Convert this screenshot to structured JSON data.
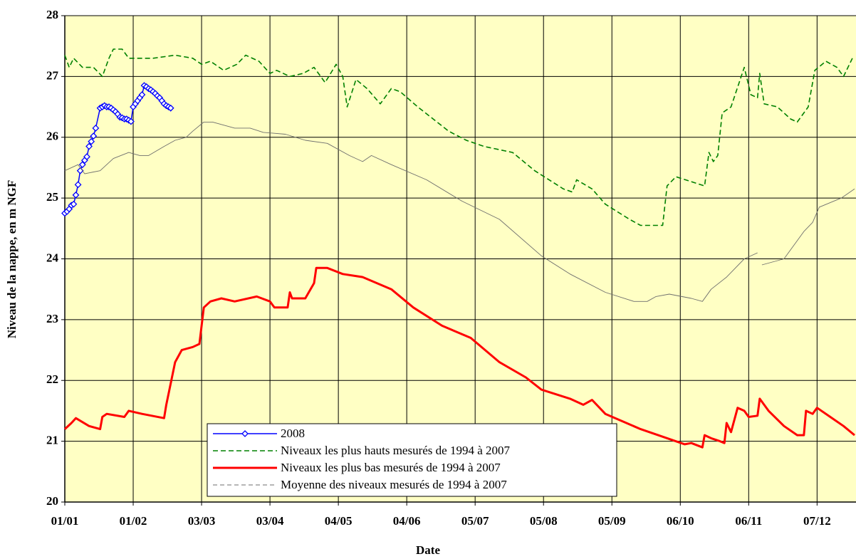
{
  "chart_data": {
    "type": "line",
    "ylabel": "Niveau de la nappe, en m NGF",
    "xlabel": "Date",
    "xlim": [
      0,
      358
    ],
    "ylim": [
      20,
      28
    ],
    "yticks": [
      20,
      21,
      22,
      23,
      24,
      25,
      26,
      27,
      28
    ],
    "xticks": [
      {
        "value": 0,
        "label": "01/01"
      },
      {
        "value": 31,
        "label": "01/02"
      },
      {
        "value": 62,
        "label": "03/03"
      },
      {
        "value": 93,
        "label": "03/04"
      },
      {
        "value": 124,
        "label": "04/05"
      },
      {
        "value": 155,
        "label": "04/06"
      },
      {
        "value": 186,
        "label": "05/07"
      },
      {
        "value": 217,
        "label": "05/08"
      },
      {
        "value": 248,
        "label": "05/09"
      },
      {
        "value": 279,
        "label": "06/10"
      },
      {
        "value": 310,
        "label": "06/11"
      },
      {
        "value": 341,
        "label": "07/12"
      }
    ],
    "grid": true,
    "background": "#ffffc4",
    "legend": "bottom-center",
    "series": [
      {
        "name": "2008",
        "color": "#0000ff",
        "line_style": "solid",
        "markers": true,
        "x": [
          0,
          1,
          2,
          3,
          4,
          5,
          6,
          7,
          8,
          9,
          10,
          11,
          12,
          13,
          14,
          16,
          17,
          18,
          19,
          20,
          21,
          22,
          23,
          24,
          25,
          26,
          27,
          28,
          29,
          30,
          31,
          32,
          33,
          34,
          35,
          36,
          37,
          38,
          39,
          40,
          41,
          42,
          43,
          44,
          45,
          46,
          47,
          48
        ],
        "values": [
          24.75,
          24.78,
          24.82,
          24.88,
          24.9,
          25.05,
          25.22,
          25.45,
          25.55,
          25.62,
          25.68,
          25.85,
          25.93,
          26.02,
          26.15,
          26.48,
          26.5,
          26.52,
          26.5,
          26.5,
          26.48,
          26.45,
          26.42,
          26.38,
          26.33,
          26.32,
          26.3,
          26.3,
          26.28,
          26.26,
          26.5,
          26.55,
          26.6,
          26.65,
          26.7,
          26.85,
          26.83,
          26.8,
          26.78,
          26.75,
          26.72,
          26.68,
          26.65,
          26.6,
          26.55,
          26.52,
          26.5,
          26.48
        ]
      },
      {
        "name": "Niveaux les plus hauts mesurés de 1994 à 2007",
        "color": "#008000",
        "line_style": "dashed",
        "markers": false,
        "x": [
          0,
          2,
          4,
          8,
          13,
          17,
          20,
          22,
          26,
          29,
          31,
          40,
          50,
          58,
          62,
          66,
          72,
          78,
          82,
          88,
          93,
          96,
          102,
          108,
          113,
          118,
          123,
          126,
          128,
          132,
          137,
          143,
          148,
          152,
          160,
          174,
          182,
          190,
          203,
          213,
          226,
          230,
          232,
          239,
          245,
          256,
          261,
          271,
          273,
          277,
          290,
          292,
          294,
          296,
          298,
          302,
          308,
          311,
          314,
          315,
          317,
          323,
          329,
          332,
          337,
          340,
          345,
          350,
          353,
          357
        ],
        "values": [
          27.35,
          27.15,
          27.3,
          27.15,
          27.15,
          27.0,
          27.3,
          27.45,
          27.45,
          27.3,
          27.3,
          27.3,
          27.35,
          27.3,
          27.2,
          27.25,
          27.1,
          27.2,
          27.35,
          27.25,
          27.05,
          27.1,
          27.0,
          27.05,
          27.15,
          26.9,
          27.2,
          27.0,
          26.5,
          26.95,
          26.8,
          26.55,
          26.8,
          26.75,
          26.5,
          26.1,
          25.95,
          25.85,
          25.75,
          25.45,
          25.15,
          25.1,
          25.3,
          25.15,
          24.9,
          24.65,
          24.55,
          24.55,
          25.2,
          25.35,
          25.2,
          25.75,
          25.6,
          25.7,
          26.4,
          26.5,
          27.15,
          26.7,
          26.65,
          27.05,
          26.55,
          26.5,
          26.3,
          26.25,
          26.5,
          27.1,
          27.25,
          27.15,
          27.0,
          27.3
        ]
      },
      {
        "name": "Niveaux les plus bas mesurés de 1994 à 2007",
        "color": "#ff0000",
        "line_style": "solid",
        "markers": false,
        "x": [
          0,
          3,
          5,
          11,
          16,
          17,
          19,
          27,
          29,
          35,
          45,
          46,
          50,
          53,
          58,
          61,
          63,
          66,
          71,
          77,
          87,
          93,
          95,
          101,
          102,
          103,
          109,
          113,
          114,
          119,
          126,
          135,
          148,
          158,
          171,
          184,
          197,
          209,
          216,
          229,
          235,
          239,
          245,
          261,
          281,
          284,
          289,
          290,
          293,
          297,
          299,
          300,
          302,
          305,
          308,
          310,
          314,
          315,
          319,
          326,
          332,
          335,
          336,
          339,
          341,
          347,
          353,
          358
        ],
        "values": [
          21.2,
          21.3,
          21.38,
          21.25,
          21.2,
          21.4,
          21.45,
          21.4,
          21.5,
          21.45,
          21.38,
          21.6,
          22.3,
          22.5,
          22.55,
          22.6,
          23.2,
          23.3,
          23.35,
          23.3,
          23.38,
          23.3,
          23.2,
          23.2,
          23.45,
          23.35,
          23.35,
          23.6,
          23.85,
          23.85,
          23.75,
          23.7,
          23.5,
          23.2,
          22.9,
          22.7,
          22.3,
          22.05,
          21.85,
          21.7,
          21.6,
          21.68,
          21.45,
          21.2,
          20.95,
          20.97,
          20.9,
          21.1,
          21.05,
          21.0,
          20.97,
          21.3,
          21.15,
          21.55,
          21.5,
          21.4,
          21.42,
          21.7,
          21.5,
          21.25,
          21.1,
          21.1,
          21.5,
          21.45,
          21.55,
          21.4,
          21.25,
          21.1
        ]
      },
      {
        "name": "Moyenne des niveaux mesurés de 1994 à 2007",
        "color": "#6e6e6e",
        "line_style": "thin",
        "markers": false,
        "x": [
          0,
          6,
          9,
          16,
          22,
          29,
          34,
          38,
          45,
          50,
          55,
          58,
          63,
          67,
          77,
          84,
          90,
          100,
          109,
          119,
          129,
          135,
          139,
          148,
          164,
          180,
          197,
          216,
          229,
          245,
          258,
          264,
          268,
          274,
          284,
          289,
          293,
          300,
          308,
          314,
          315,
          316,
          326,
          335,
          339,
          342,
          352,
          358
        ],
        "values": [
          25.45,
          25.55,
          25.4,
          25.45,
          25.65,
          25.75,
          25.7,
          25.7,
          25.85,
          25.95,
          26.0,
          26.1,
          26.25,
          26.25,
          26.15,
          26.15,
          26.08,
          26.05,
          25.95,
          25.9,
          25.7,
          25.6,
          25.7,
          25.55,
          25.3,
          24.95,
          24.65,
          24.05,
          23.75,
          23.45,
          23.3,
          23.3,
          23.38,
          23.42,
          23.35,
          23.3,
          23.5,
          23.7,
          24.0,
          24.1,
          null,
          23.9,
          24.0,
          24.45,
          24.6,
          24.85,
          25.0,
          25.15
        ]
      }
    ]
  }
}
